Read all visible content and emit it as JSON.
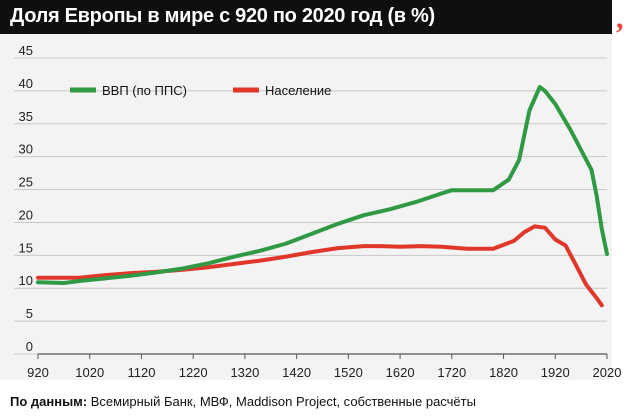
{
  "title": "Доля Европы в мире с 920 по 2020 год (в %)",
  "logo": ",",
  "source": {
    "label": "По данным:",
    "text": " Всемирный Банк, МВФ, Maddison Project, собственные расчёты"
  },
  "colors": {
    "gdp": "#2f9a43",
    "population": "#e1372a",
    "title_bg": "#0f0f0f",
    "panel_bg": "#f3f3f3"
  },
  "chart_data": {
    "type": "line",
    "title": "Доля Европы в мире с 920 по 2020 год (в %)",
    "xlim": [
      920,
      2020
    ],
    "ylim": [
      0,
      45
    ],
    "x_ticks": [
      920,
      1020,
      1120,
      1220,
      1320,
      1420,
      1520,
      1620,
      1720,
      1820,
      1920,
      2020
    ],
    "y_ticks": [
      0,
      5,
      10,
      15,
      20,
      25,
      30,
      35,
      40,
      45
    ],
    "grid": "horizontal",
    "legend_position": "top-left",
    "series": [
      {
        "name": "ВВП (по ППС)",
        "color": "#2f9a43",
        "points": [
          [
            920,
            10.9
          ],
          [
            970,
            10.8
          ],
          [
            1000,
            11.1
          ],
          [
            1050,
            11.5
          ],
          [
            1100,
            11.9
          ],
          [
            1150,
            12.4
          ],
          [
            1200,
            13.0
          ],
          [
            1250,
            13.8
          ],
          [
            1300,
            14.8
          ],
          [
            1350,
            15.7
          ],
          [
            1400,
            16.8
          ],
          [
            1450,
            18.3
          ],
          [
            1500,
            19.8
          ],
          [
            1550,
            21.1
          ],
          [
            1600,
            22.0
          ],
          [
            1650,
            23.1
          ],
          [
            1700,
            24.4
          ],
          [
            1720,
            24.9
          ],
          [
            1760,
            24.9
          ],
          [
            1800,
            24.9
          ],
          [
            1830,
            26.5
          ],
          [
            1850,
            29.5
          ],
          [
            1870,
            37.0
          ],
          [
            1890,
            40.6
          ],
          [
            1900,
            40.0
          ],
          [
            1920,
            38.0
          ],
          [
            1950,
            34.0
          ],
          [
            1980,
            29.5
          ],
          [
            1990,
            28.0
          ],
          [
            2000,
            24.0
          ],
          [
            2010,
            19.0
          ],
          [
            2020,
            15.2
          ]
        ]
      },
      {
        "name": "Население",
        "color": "#e1372a",
        "points": [
          [
            920,
            11.6
          ],
          [
            1000,
            11.6
          ],
          [
            1050,
            12.0
          ],
          [
            1100,
            12.3
          ],
          [
            1150,
            12.5
          ],
          [
            1200,
            12.8
          ],
          [
            1250,
            13.2
          ],
          [
            1300,
            13.7
          ],
          [
            1350,
            14.2
          ],
          [
            1400,
            14.8
          ],
          [
            1450,
            15.5
          ],
          [
            1500,
            16.1
          ],
          [
            1550,
            16.4
          ],
          [
            1580,
            16.4
          ],
          [
            1620,
            16.3
          ],
          [
            1660,
            16.4
          ],
          [
            1700,
            16.3
          ],
          [
            1750,
            16.0
          ],
          [
            1800,
            16.0
          ],
          [
            1840,
            17.2
          ],
          [
            1860,
            18.5
          ],
          [
            1880,
            19.4
          ],
          [
            1900,
            19.2
          ],
          [
            1920,
            17.4
          ],
          [
            1940,
            16.5
          ],
          [
            1960,
            13.5
          ],
          [
            1980,
            10.5
          ],
          [
            2000,
            8.5
          ],
          [
            2010,
            7.4
          ]
        ]
      }
    ]
  }
}
